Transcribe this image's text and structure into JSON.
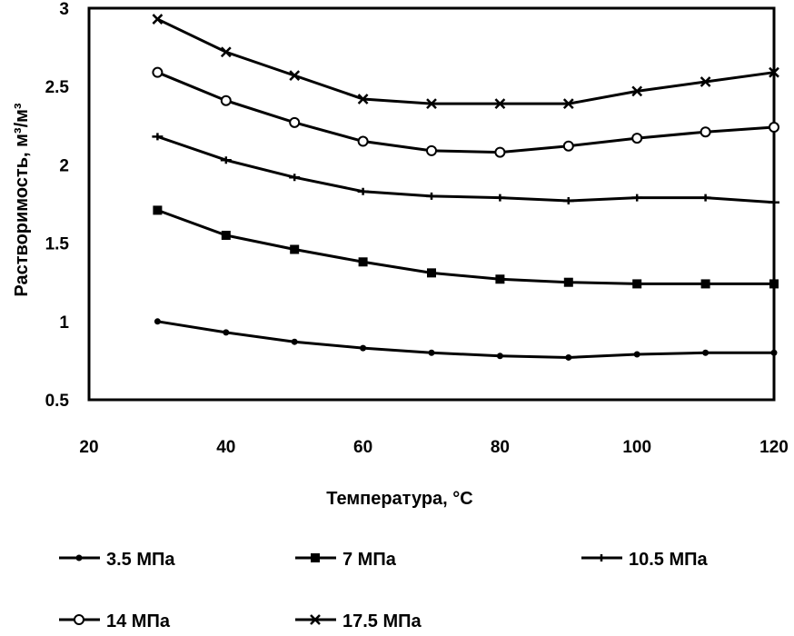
{
  "chart_data": {
    "type": "line",
    "title": "",
    "xlabel": "Температура, °C",
    "ylabel": "Растворимость, м³/м³",
    "xlim": [
      20,
      120
    ],
    "ylim": [
      0.5,
      3
    ],
    "xticks": [
      "20",
      "40",
      "60",
      "80",
      "100",
      "120"
    ],
    "yticks": [
      "0.5",
      "1",
      "1.5",
      "2",
      "2.5",
      "3"
    ],
    "grid": false,
    "legend_position": "bottom",
    "x": [
      30,
      40,
      50,
      60,
      70,
      80,
      90,
      100,
      110,
      120
    ],
    "series": [
      {
        "name": "3.5 МПа",
        "marker": "dot",
        "values": [
          1.0,
          0.93,
          0.87,
          0.83,
          0.8,
          0.78,
          0.77,
          0.79,
          0.8,
          0.8
        ]
      },
      {
        "name": "7 МПа",
        "marker": "square",
        "values": [
          1.71,
          1.55,
          1.46,
          1.38,
          1.31,
          1.27,
          1.25,
          1.24,
          1.24,
          1.24
        ]
      },
      {
        "name": "10.5 МПа",
        "marker": "dash",
        "values": [
          2.18,
          2.03,
          1.92,
          1.83,
          1.8,
          1.79,
          1.77,
          1.79,
          1.79,
          1.76
        ]
      },
      {
        "name": "14 МПа",
        "marker": "circle",
        "values": [
          2.59,
          2.41,
          2.27,
          2.15,
          2.09,
          2.08,
          2.12,
          2.17,
          2.21,
          2.24
        ]
      },
      {
        "name": "17.5 МПа",
        "marker": "x",
        "values": [
          2.93,
          2.72,
          2.57,
          2.42,
          2.39,
          2.39,
          2.39,
          2.47,
          2.53,
          2.59
        ]
      }
    ]
  }
}
